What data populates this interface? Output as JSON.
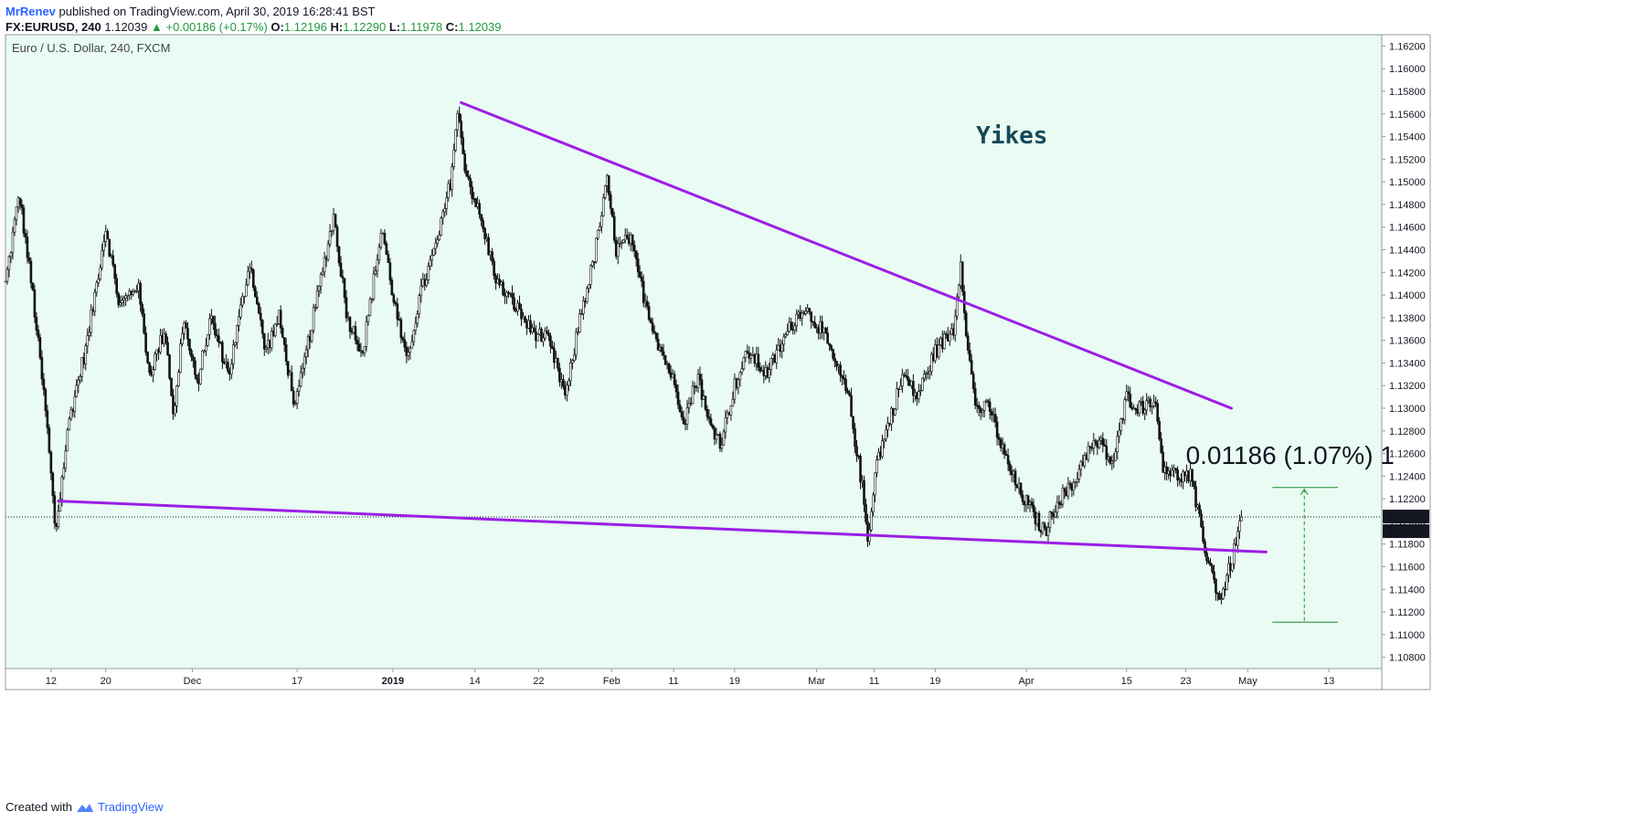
{
  "header": {
    "author": "MrRenev",
    "published_text": "published on TradingView.com, April 30, 2019 16:28:41 BST",
    "symbol": "FX:EURUSD, 240",
    "last": "1.12039",
    "change": "▲ +0.00186 (+0.17%)",
    "open_label": "O:",
    "open": "1.12196",
    "high_label": "H:",
    "high": "1.12290",
    "low_label": "L:",
    "low": "1.11978",
    "close_label": "C:",
    "close": "1.12039"
  },
  "chart_title": "Euro / U.S. Dollar, 240, FXCM",
  "annotation_text": "Yikes",
  "measure_text": "0.01186 (1.07%) 1",
  "last_price_label": "1.12039",
  "countdown_label": "01:31:21",
  "footer": {
    "created_with": "Created with",
    "brand": "TradingView"
  },
  "colors": {
    "background": "#e9fbf2",
    "trendline": "#9b1ee6",
    "candle": "#111111",
    "measure": "#1e8a2e",
    "yikes": "#17485a",
    "brand": "#2962ff",
    "up": "#1e9a3e"
  },
  "chart_data": {
    "type": "candlestick",
    "title": "Euro / U.S. Dollar, 240, FXCM",
    "ylim": [
      1.107,
      1.163
    ],
    "y_ticks": [
      "1.10800",
      "1.11000",
      "1.11200",
      "1.11400",
      "1.11600",
      "1.11800",
      "1.12000",
      "1.12200",
      "1.12400",
      "1.12600",
      "1.12800",
      "1.13000",
      "1.13200",
      "1.13400",
      "1.13600",
      "1.13800",
      "1.14000",
      "1.14200",
      "1.14400",
      "1.14600",
      "1.14800",
      "1.15000",
      "1.15200",
      "1.15400",
      "1.15600",
      "1.15800",
      "1.16000",
      "1.16200"
    ],
    "x_ticks": [
      {
        "label": "12",
        "bold": false,
        "bar": 50
      },
      {
        "label": "20",
        "bold": false,
        "bar": 110
      },
      {
        "label": "Dec",
        "bold": false,
        "bar": 205
      },
      {
        "label": "17",
        "bold": false,
        "bar": 320
      },
      {
        "label": "2019",
        "bold": true,
        "bar": 425
      },
      {
        "label": "14",
        "bold": false,
        "bar": 515
      },
      {
        "label": "22",
        "bold": false,
        "bar": 585
      },
      {
        "label": "Feb",
        "bold": false,
        "bar": 665
      },
      {
        "label": "11",
        "bold": false,
        "bar": 733
      },
      {
        "label": "19",
        "bold": false,
        "bar": 800
      },
      {
        "label": "Mar",
        "bold": false,
        "bar": 890
      },
      {
        "label": "11",
        "bold": false,
        "bar": 953
      },
      {
        "label": "19",
        "bold": false,
        "bar": 1020
      },
      {
        "label": "Apr",
        "bold": false,
        "bar": 1120
      },
      {
        "label": "15",
        "bold": false,
        "bar": 1230
      },
      {
        "label": "23",
        "bold": false,
        "bar": 1295
      },
      {
        "label": "May",
        "bold": false,
        "bar": 1363
      },
      {
        "label": "13",
        "bold": false,
        "bar": 1452
      }
    ],
    "bar_count": 1510,
    "last_bar": 1356,
    "last_price": 1.12039,
    "anchors": [
      [
        0,
        1.141
      ],
      [
        15,
        1.149
      ],
      [
        30,
        1.14
      ],
      [
        45,
        1.129
      ],
      [
        55,
        1.119
      ],
      [
        70,
        1.129
      ],
      [
        90,
        1.136
      ],
      [
        110,
        1.146
      ],
      [
        125,
        1.139
      ],
      [
        145,
        1.141
      ],
      [
        158,
        1.133
      ],
      [
        175,
        1.137
      ],
      [
        185,
        1.129
      ],
      [
        195,
        1.138
      ],
      [
        210,
        1.132
      ],
      [
        225,
        1.138
      ],
      [
        245,
        1.133
      ],
      [
        268,
        1.143
      ],
      [
        285,
        1.135
      ],
      [
        300,
        1.138
      ],
      [
        318,
        1.13
      ],
      [
        335,
        1.137
      ],
      [
        360,
        1.147
      ],
      [
        375,
        1.138
      ],
      [
        392,
        1.135
      ],
      [
        413,
        1.146
      ],
      [
        425,
        1.14
      ],
      [
        440,
        1.134
      ],
      [
        455,
        1.14
      ],
      [
        475,
        1.145
      ],
      [
        488,
        1.15
      ],
      [
        496,
        1.156
      ],
      [
        505,
        1.151
      ],
      [
        520,
        1.147
      ],
      [
        540,
        1.141
      ],
      [
        560,
        1.139
      ],
      [
        575,
        1.137
      ],
      [
        595,
        1.136
      ],
      [
        615,
        1.131
      ],
      [
        630,
        1.138
      ],
      [
        645,
        1.143
      ],
      [
        660,
        1.15
      ],
      [
        670,
        1.144
      ],
      [
        685,
        1.145
      ],
      [
        700,
        1.14
      ],
      [
        715,
        1.136
      ],
      [
        730,
        1.133
      ],
      [
        745,
        1.129
      ],
      [
        760,
        1.133
      ],
      [
        770,
        1.129
      ],
      [
        785,
        1.127
      ],
      [
        800,
        1.132
      ],
      [
        815,
        1.135
      ],
      [
        835,
        1.133
      ],
      [
        860,
        1.137
      ],
      [
        875,
        1.139
      ],
      [
        895,
        1.137
      ],
      [
        910,
        1.134
      ],
      [
        925,
        1.131
      ],
      [
        940,
        1.123
      ],
      [
        946,
        1.1183
      ],
      [
        955,
        1.125
      ],
      [
        970,
        1.129
      ],
      [
        985,
        1.133
      ],
      [
        1000,
        1.131
      ],
      [
        1020,
        1.135
      ],
      [
        1040,
        1.137
      ],
      [
        1048,
        1.143
      ],
      [
        1056,
        1.135
      ],
      [
        1065,
        1.13
      ],
      [
        1080,
        1.13
      ],
      [
        1095,
        1.126
      ],
      [
        1110,
        1.123
      ],
      [
        1125,
        1.121
      ],
      [
        1140,
        1.119
      ],
      [
        1155,
        1.122
      ],
      [
        1170,
        1.123
      ],
      [
        1185,
        1.126
      ],
      [
        1200,
        1.127
      ],
      [
        1215,
        1.125
      ],
      [
        1230,
        1.131
      ],
      [
        1245,
        1.13
      ],
      [
        1260,
        1.131
      ],
      [
        1270,
        1.125
      ],
      [
        1285,
        1.124
      ],
      [
        1300,
        1.124
      ],
      [
        1310,
        1.12
      ],
      [
        1318,
        1.117
      ],
      [
        1325,
        1.115
      ],
      [
        1333,
        1.113
      ],
      [
        1340,
        1.115
      ],
      [
        1350,
        1.118
      ],
      [
        1356,
        1.12039
      ]
    ],
    "trendlines": [
      {
        "from": {
          "bar": 500,
          "price": 1.157
        },
        "to": {
          "bar": 1345,
          "price": 1.13
        }
      },
      {
        "from": {
          "bar": 58,
          "price": 1.1218
        },
        "to": {
          "bar": 1383,
          "price": 1.1173
        }
      }
    ],
    "measure": {
      "bar": 1425,
      "price_top": 1.123,
      "price_bottom": 1.1111,
      "left_bar": 1390,
      "right_bar": 1462
    }
  }
}
